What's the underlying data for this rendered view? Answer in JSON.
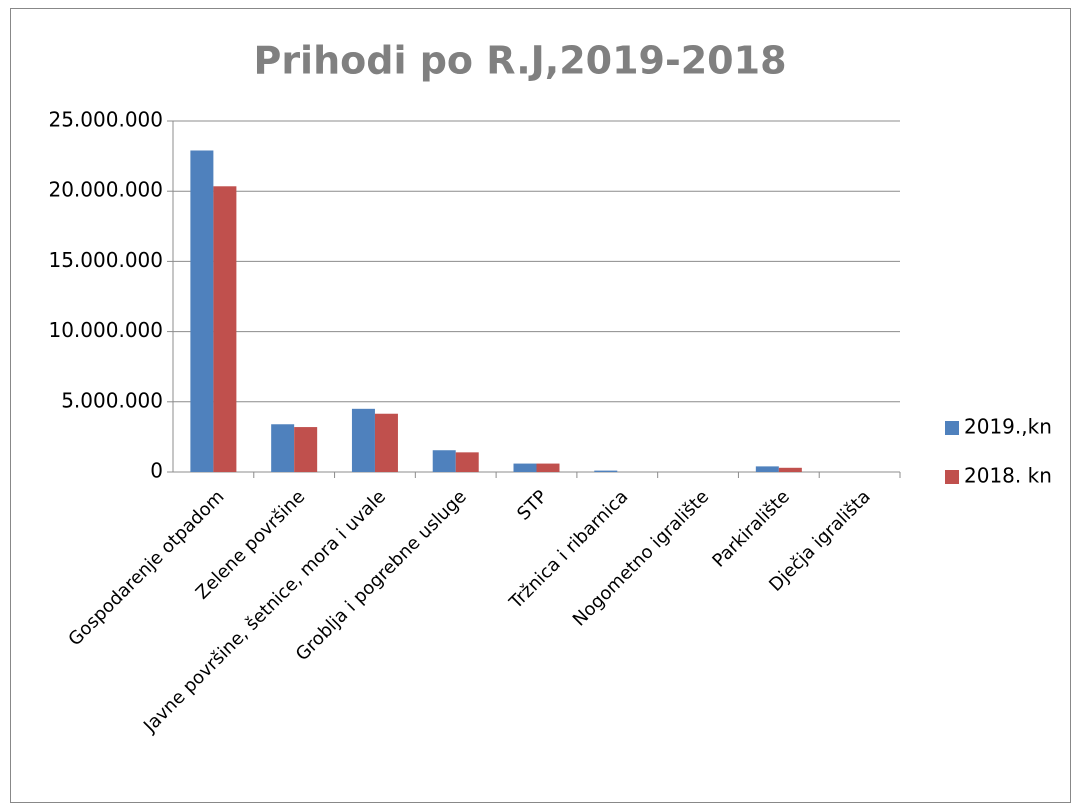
{
  "chart_data": {
    "type": "bar",
    "title": "Prihodi po R.J,2019-2018",
    "categories": [
      "Gospodarenje otpadom",
      "Zelene površine",
      "Javne površine, šetnice, mora i uvale",
      "Groblja i pogrebne usluge",
      "STP",
      "Tržnica i ribarnica",
      "Nogometno igralište",
      "Parkiralište",
      "Dječja igrališta"
    ],
    "series": [
      {
        "name": "2019.,kn",
        "color": "#4f81bd",
        "values": [
          22900000,
          3400000,
          4500000,
          1550000,
          600000,
          100000,
          0,
          400000,
          0
        ]
      },
      {
        "name": "2018. kn",
        "color": "#c0504d",
        "values": [
          20350000,
          3200000,
          4150000,
          1400000,
          600000,
          0,
          0,
          300000,
          0
        ]
      }
    ],
    "ylim": [
      0,
      25000000
    ],
    "yticks": [
      0,
      {
        "value": 5000000,
        "label": "5.000.000"
      },
      {
        "value": 10000000,
        "label": "10.000.000"
      },
      {
        "value": 15000000,
        "label": "15.000.000"
      },
      {
        "value": 20000000,
        "label": "20.000.000"
      },
      {
        "value": 25000000,
        "label": "25.000.000"
      }
    ],
    "grid": true,
    "legend": "right"
  }
}
